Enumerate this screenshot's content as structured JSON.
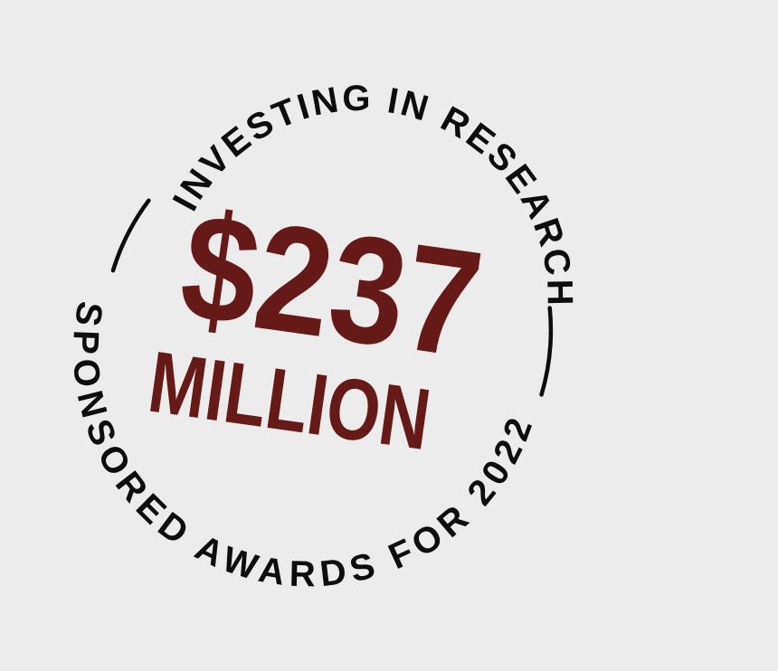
{
  "badge": {
    "top_arc_text": "INVESTING IN RESEARCH",
    "amount": "$237",
    "unit": "MILLION",
    "bottom_arc_text": "SPONSORED AWARDS FOR 2022"
  },
  "colors": {
    "background": "#ececec",
    "ring": "#0d0d0d",
    "accent": "#661a18"
  }
}
